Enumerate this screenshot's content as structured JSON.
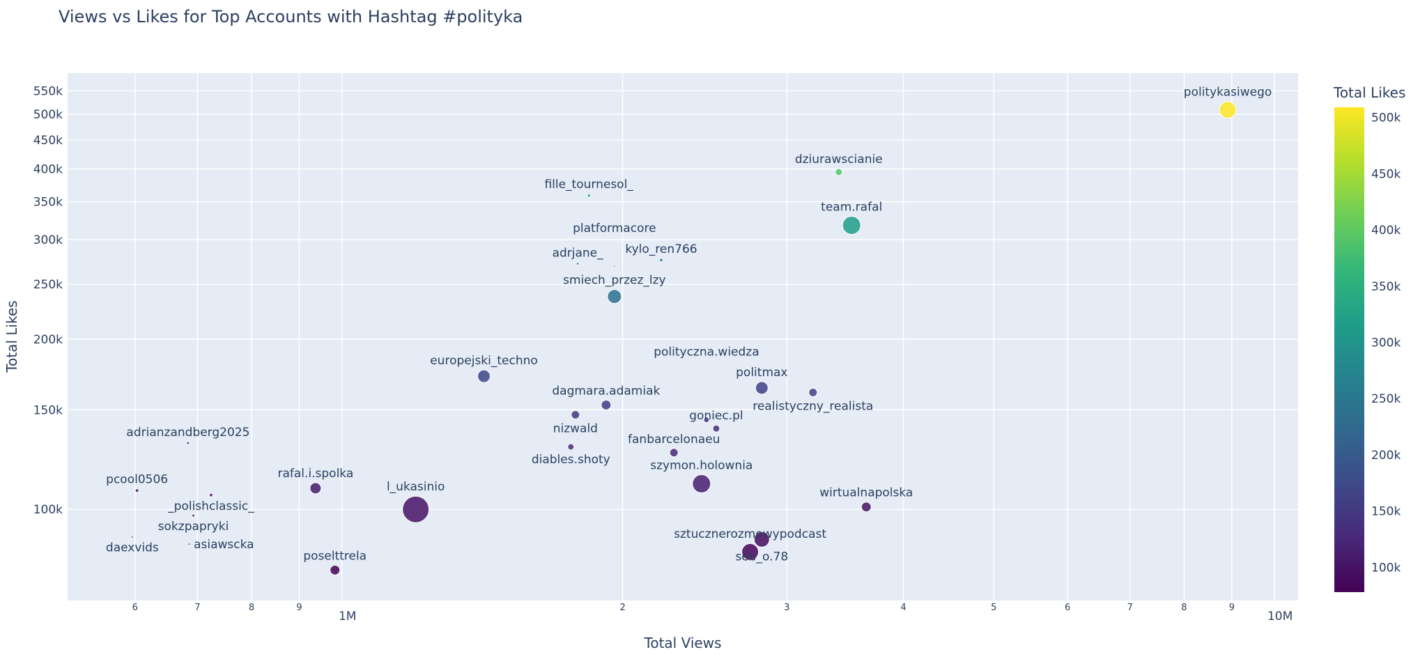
{
  "chart_data": {
    "type": "scatter",
    "title": "Views vs Likes for Top Accounts with Hashtag #polityka",
    "xlabel": "Total Views",
    "ylabel": "Total Likes",
    "xscale": "log",
    "yscale": "log",
    "xlim": [
      508000,
      10600000
    ],
    "ylim": [
      69000,
      591000
    ],
    "grid": true,
    "x_ticks": [
      {
        "value": 600000,
        "label": "6",
        "major": false
      },
      {
        "value": 700000,
        "label": "7",
        "major": false
      },
      {
        "value": 800000,
        "label": "8",
        "major": false
      },
      {
        "value": 900000,
        "label": "9",
        "major": false
      },
      {
        "value": 1000000,
        "label": "1M",
        "major": true
      },
      {
        "value": 2000000,
        "label": "2",
        "major": false
      },
      {
        "value": 3000000,
        "label": "3",
        "major": false
      },
      {
        "value": 4000000,
        "label": "4",
        "major": false
      },
      {
        "value": 5000000,
        "label": "5",
        "major": false
      },
      {
        "value": 6000000,
        "label": "6",
        "major": false
      },
      {
        "value": 7000000,
        "label": "7",
        "major": false
      },
      {
        "value": 8000000,
        "label": "8",
        "major": false
      },
      {
        "value": 9000000,
        "label": "9",
        "major": false
      },
      {
        "value": 10000000,
        "label": "10M",
        "major": true
      }
    ],
    "y_ticks": [
      {
        "value": 100000,
        "label": "100k"
      },
      {
        "value": 150000,
        "label": "150k"
      },
      {
        "value": 200000,
        "label": "200k"
      },
      {
        "value": 250000,
        "label": "250k"
      },
      {
        "value": 300000,
        "label": "300k"
      },
      {
        "value": 350000,
        "label": "350k"
      },
      {
        "value": 400000,
        "label": "400k"
      },
      {
        "value": 450000,
        "label": "450k"
      },
      {
        "value": 500000,
        "label": "500k"
      },
      {
        "value": 550000,
        "label": "550k"
      }
    ],
    "colorbar": {
      "title": "Total Likes",
      "colorscale": "Viridis",
      "range": [
        78000,
        509000
      ],
      "ticks": [
        {
          "value": 100000,
          "label": "100k"
        },
        {
          "value": 150000,
          "label": "150k"
        },
        {
          "value": 200000,
          "label": "200k"
        },
        {
          "value": 250000,
          "label": "250k"
        },
        {
          "value": 300000,
          "label": "300k"
        },
        {
          "value": 350000,
          "label": "350k"
        },
        {
          "value": 400000,
          "label": "400k"
        },
        {
          "value": 450000,
          "label": "450k"
        },
        {
          "value": 500000,
          "label": "500k"
        }
      ]
    },
    "points": [
      {
        "name": "politykasiwego",
        "views": 8910000,
        "likes": 509000,
        "marker_size": 12
      },
      {
        "name": "dziurawscianie",
        "views": 3410000,
        "likes": 395000,
        "marker_size": 5
      },
      {
        "name": "team.rafal",
        "views": 3520000,
        "likes": 318000,
        "marker_size": 13
      },
      {
        "name": "fille_tournesol_",
        "views": 1840000,
        "likes": 359000,
        "marker_size": 2.5
      },
      {
        "name": "kylo_ren766",
        "views": 2200000,
        "likes": 276000,
        "marker_size": 2.5
      },
      {
        "name": "adrjane_",
        "views": 1790000,
        "likes": 272000,
        "marker_size": 2
      },
      {
        "name": "platformacore",
        "views": 1960000,
        "likes": 269000,
        "marker_size": 1.5
      },
      {
        "name": "smiech_przez_lzy",
        "views": 1960000,
        "likes": 238000,
        "marker_size": 10
      },
      {
        "name": "europejski_techno",
        "views": 1420000,
        "likes": 172000,
        "marker_size": 9
      },
      {
        "name": "dagmara.adamiak",
        "views": 1920000,
        "likes": 153000,
        "marker_size": 7
      },
      {
        "name": "nizwald",
        "views": 1780000,
        "likes": 147000,
        "marker_size": 6
      },
      {
        "name": "diables.shoty",
        "views": 1760000,
        "likes": 129000,
        "marker_size": 4.5
      },
      {
        "name": "politmax",
        "views": 2820000,
        "likes": 164000,
        "marker_size": 9
      },
      {
        "name": "realistyczny_realista",
        "views": 3200000,
        "likes": 161000,
        "marker_size": 6
      },
      {
        "name": "polityczna.wiedza",
        "views": 2460000,
        "likes": 144000,
        "marker_size": 4
      },
      {
        "name": "goniec.pl",
        "views": 2520000,
        "likes": 139000,
        "marker_size": 5
      },
      {
        "name": "fanbarcelonaeu",
        "views": 2270000,
        "likes": 126000,
        "marker_size": 6
      },
      {
        "name": "szymon.holownia",
        "views": 2430000,
        "likes": 111000,
        "marker_size": 13
      },
      {
        "name": "wirtualnapolska",
        "views": 3650000,
        "likes": 101000,
        "marker_size": 7
      },
      {
        "name": "seb_o.78",
        "views": 2820000,
        "likes": 88500,
        "marker_size": 11
      },
      {
        "name": "sztucznerozmowypodcast",
        "views": 2740000,
        "likes": 84100,
        "marker_size": 12
      },
      {
        "name": "l_ukasinio",
        "views": 1200000,
        "likes": 100000,
        "marker_size": 19
      },
      {
        "name": "rafal.i.spolka",
        "views": 937000,
        "likes": 109000,
        "marker_size": 8
      },
      {
        "name": "poselttrela",
        "views": 983000,
        "likes": 78100,
        "marker_size": 7
      },
      {
        "name": "adrianzandberg2025",
        "views": 684000,
        "likes": 131000,
        "marker_size": 2
      },
      {
        "name": "pcool0506",
        "views": 603000,
        "likes": 108000,
        "marker_size": 2.5
      },
      {
        "name": "_polishclassic_",
        "views": 724000,
        "likes": 106000,
        "marker_size": 2.5
      },
      {
        "name": "sokzpapryki",
        "views": 693000,
        "likes": 97500,
        "marker_size": 2
      },
      {
        "name": "daexvids",
        "views": 596000,
        "likes": 89300,
        "marker_size": 1.5
      },
      {
        "name": "asiawscka",
        "views": 686000,
        "likes": 86800,
        "marker_size": 1.5
      }
    ]
  },
  "colors": {
    "plot_bg": "#e5ecf6",
    "grid": "#ffffff",
    "text": "#2a3f5f"
  }
}
